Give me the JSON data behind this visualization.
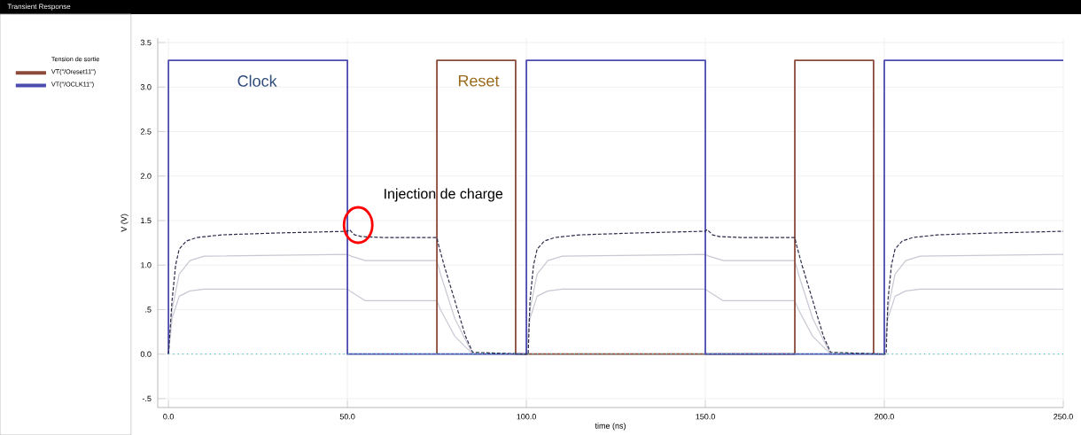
{
  "chart_data": {
    "type": "line",
    "title": "Transient Response",
    "xlabel": "time (ns)",
    "ylabel": "V (V)",
    "legend_title": "Tension de sortie",
    "legend": "left",
    "grid": true,
    "marker": "none",
    "xlim": [
      -3,
      250
    ],
    "ylim": [
      -0.6,
      3.55
    ],
    "xticks": [
      {
        "value": 0,
        "label": "0.0"
      },
      {
        "value": 50,
        "label": "50.0"
      },
      {
        "value": 100,
        "label": "100.0"
      },
      {
        "value": 150,
        "label": "150.0"
      },
      {
        "value": 200,
        "label": "200.0"
      },
      {
        "value": 250,
        "label": "250.0"
      }
    ],
    "yticks": [
      {
        "value": -0.5,
        "label": "-.5"
      },
      {
        "value": 0,
        "label": "0.0"
      },
      {
        "value": 0.5,
        "label": ".5"
      },
      {
        "value": 1,
        "label": "1.0"
      },
      {
        "value": 1.5,
        "label": "1.5"
      },
      {
        "value": 2,
        "label": "2.0"
      },
      {
        "value": 2.5,
        "label": "2.5"
      },
      {
        "value": 3,
        "label": "3.0"
      },
      {
        "value": 3.5,
        "label": "3.5"
      }
    ],
    "annotations": [
      "Clock",
      "Reset",
      {
        "text": "Injection de charge",
        "x": 53,
        "y": 1.45
      }
    ],
    "series": [
      {
        "color": "#c8c8d4",
        "line_style": "solid",
        "x": [
          0,
          1,
          3,
          6,
          10,
          50,
          51,
          55,
          75,
          76,
          80,
          85,
          100,
          101,
          103,
          106,
          110,
          150,
          151,
          155,
          175,
          176,
          180,
          185,
          200,
          201,
          203,
          206,
          210,
          250
        ],
        "values": [
          0,
          0.5,
          0.9,
          1.05,
          1.1,
          1.12,
          1.1,
          1.05,
          1.05,
          0.9,
          0.4,
          0,
          0,
          0.5,
          0.9,
          1.05,
          1.1,
          1.12,
          1.1,
          1.05,
          1.05,
          0.9,
          0.4,
          0,
          0,
          0.5,
          0.9,
          1.05,
          1.1,
          1.12
        ]
      },
      {
        "color": "#c8c8d4",
        "line_style": "solid",
        "x": [
          0,
          1,
          3,
          6,
          10,
          50,
          51,
          55,
          75,
          76,
          80,
          85,
          100,
          101,
          103,
          106,
          110,
          150,
          151,
          155,
          175,
          176,
          180,
          185,
          200,
          201,
          203,
          206,
          210,
          250
        ],
        "values": [
          0,
          0.4,
          0.65,
          0.71,
          0.73,
          0.73,
          0.7,
          0.6,
          0.6,
          0.5,
          0.2,
          0,
          0,
          0.4,
          0.65,
          0.71,
          0.73,
          0.73,
          0.7,
          0.6,
          0.6,
          0.5,
          0.2,
          0,
          0,
          0.4,
          0.65,
          0.71,
          0.73,
          0.73
        ]
      },
      {
        "name": "VT(\"/Oreset11\")",
        "color": "#8b4a3a",
        "line_style": "solid",
        "x": [
          75,
          75,
          97,
          97,
          175,
          175,
          197,
          197
        ],
        "values": [
          0,
          3.3,
          3.3,
          0,
          0,
          3.3,
          3.3,
          0
        ]
      },
      {
        "name": "VT(\"/OCLK11\")",
        "color": "#4b4bb0",
        "line_style": "solid",
        "x": [
          0,
          0,
          50,
          50,
          100,
          100,
          150,
          150,
          200,
          200,
          250
        ],
        "values": [
          0,
          3.3,
          3.3,
          0,
          0,
          3.3,
          3.3,
          0,
          0,
          3.3,
          3.3
        ]
      },
      {
        "color": "#2b2b4a",
        "line_style": "dashed",
        "x": [
          0,
          1,
          2,
          3,
          5,
          8,
          15,
          30,
          50,
          50.5,
          52,
          54,
          60,
          75,
          75.5,
          77,
          80,
          83,
          85,
          100,
          100.5,
          101,
          102,
          103,
          105,
          108,
          115,
          130,
          150,
          150.5,
          152,
          154,
          160,
          175,
          175.5,
          177,
          180,
          183,
          185,
          200,
          200.5,
          201,
          202,
          203,
          205,
          208,
          215,
          230,
          250
        ],
        "values": [
          0,
          0.6,
          1.0,
          1.18,
          1.27,
          1.31,
          1.34,
          1.36,
          1.38,
          1.4,
          1.34,
          1.32,
          1.31,
          1.31,
          1.22,
          1.0,
          0.6,
          0.2,
          0.02,
          0,
          0,
          0.6,
          1.0,
          1.18,
          1.27,
          1.31,
          1.34,
          1.36,
          1.38,
          1.4,
          1.34,
          1.32,
          1.31,
          1.31,
          1.22,
          1.0,
          0.6,
          0.2,
          0.02,
          0,
          0,
          0.6,
          1.0,
          1.18,
          1.27,
          1.31,
          1.34,
          1.36,
          1.38
        ]
      },
      {
        "color": "#40c0c8",
        "line_style": "dotted",
        "x": [
          0,
          250
        ],
        "values": [
          0,
          0
        ]
      }
    ]
  }
}
